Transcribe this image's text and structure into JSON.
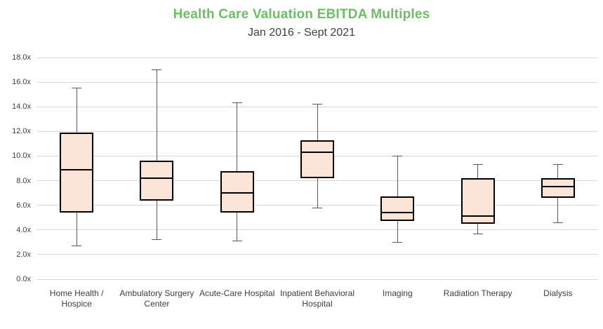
{
  "chart": {
    "title": "Health Care Valuation EBITDA Multiples",
    "subtitle": "Jan 2016 - Sept 2021"
  },
  "chart_data": {
    "type": "boxplot",
    "title": "Health Care Valuation EBITDA Multiples",
    "subtitle": "Jan 2016 - Sept 2021",
    "categories": [
      "Home Health / Hospice",
      "Ambulatory Surgery Center",
      "Acute-Care Hospital",
      "Inpatient Behavioral Hospital",
      "Imaging",
      "Radiation Therapy",
      "Dialysis"
    ],
    "series": [
      {
        "name": "EBITDA Multiple",
        "boxes": [
          {
            "category": "Home Health / Hospice",
            "min": 2.7,
            "q1": 5.4,
            "median": 8.9,
            "q3": 11.9,
            "max": 15.5
          },
          {
            "category": "Ambulatory Surgery Center",
            "min": 3.2,
            "q1": 6.4,
            "median": 8.2,
            "q3": 9.6,
            "max": 17.0
          },
          {
            "category": "Acute-Care Hospital",
            "min": 3.1,
            "q1": 5.4,
            "median": 7.0,
            "q3": 8.8,
            "max": 14.3
          },
          {
            "category": "Inpatient Behavioral Hospital",
            "min": 5.8,
            "q1": 8.2,
            "median": 10.3,
            "q3": 11.3,
            "max": 14.2
          },
          {
            "category": "Imaging",
            "min": 3.0,
            "q1": 4.7,
            "median": 5.4,
            "q3": 6.7,
            "max": 10.0
          },
          {
            "category": "Radiation Therapy",
            "min": 3.7,
            "q1": 4.5,
            "median": 5.1,
            "q3": 8.2,
            "max": 9.3
          },
          {
            "category": "Dialysis",
            "min": 4.6,
            "q1": 6.6,
            "median": 7.5,
            "q3": 8.2,
            "max": 9.3
          }
        ]
      }
    ],
    "ylim": [
      0,
      18
    ],
    "ytick_step": 2,
    "ytick_suffix": "x",
    "ytick_decimals": 1,
    "xlabel": "",
    "ylabel": "",
    "grid": true,
    "legend": "none",
    "colors": {
      "title": "#6CBF63",
      "text": "#404040",
      "gridline": "#D9D9D9",
      "box_fill": "#FCE4D6",
      "box_border": "#000000",
      "median": "#000000",
      "whisker": "#595959"
    }
  }
}
